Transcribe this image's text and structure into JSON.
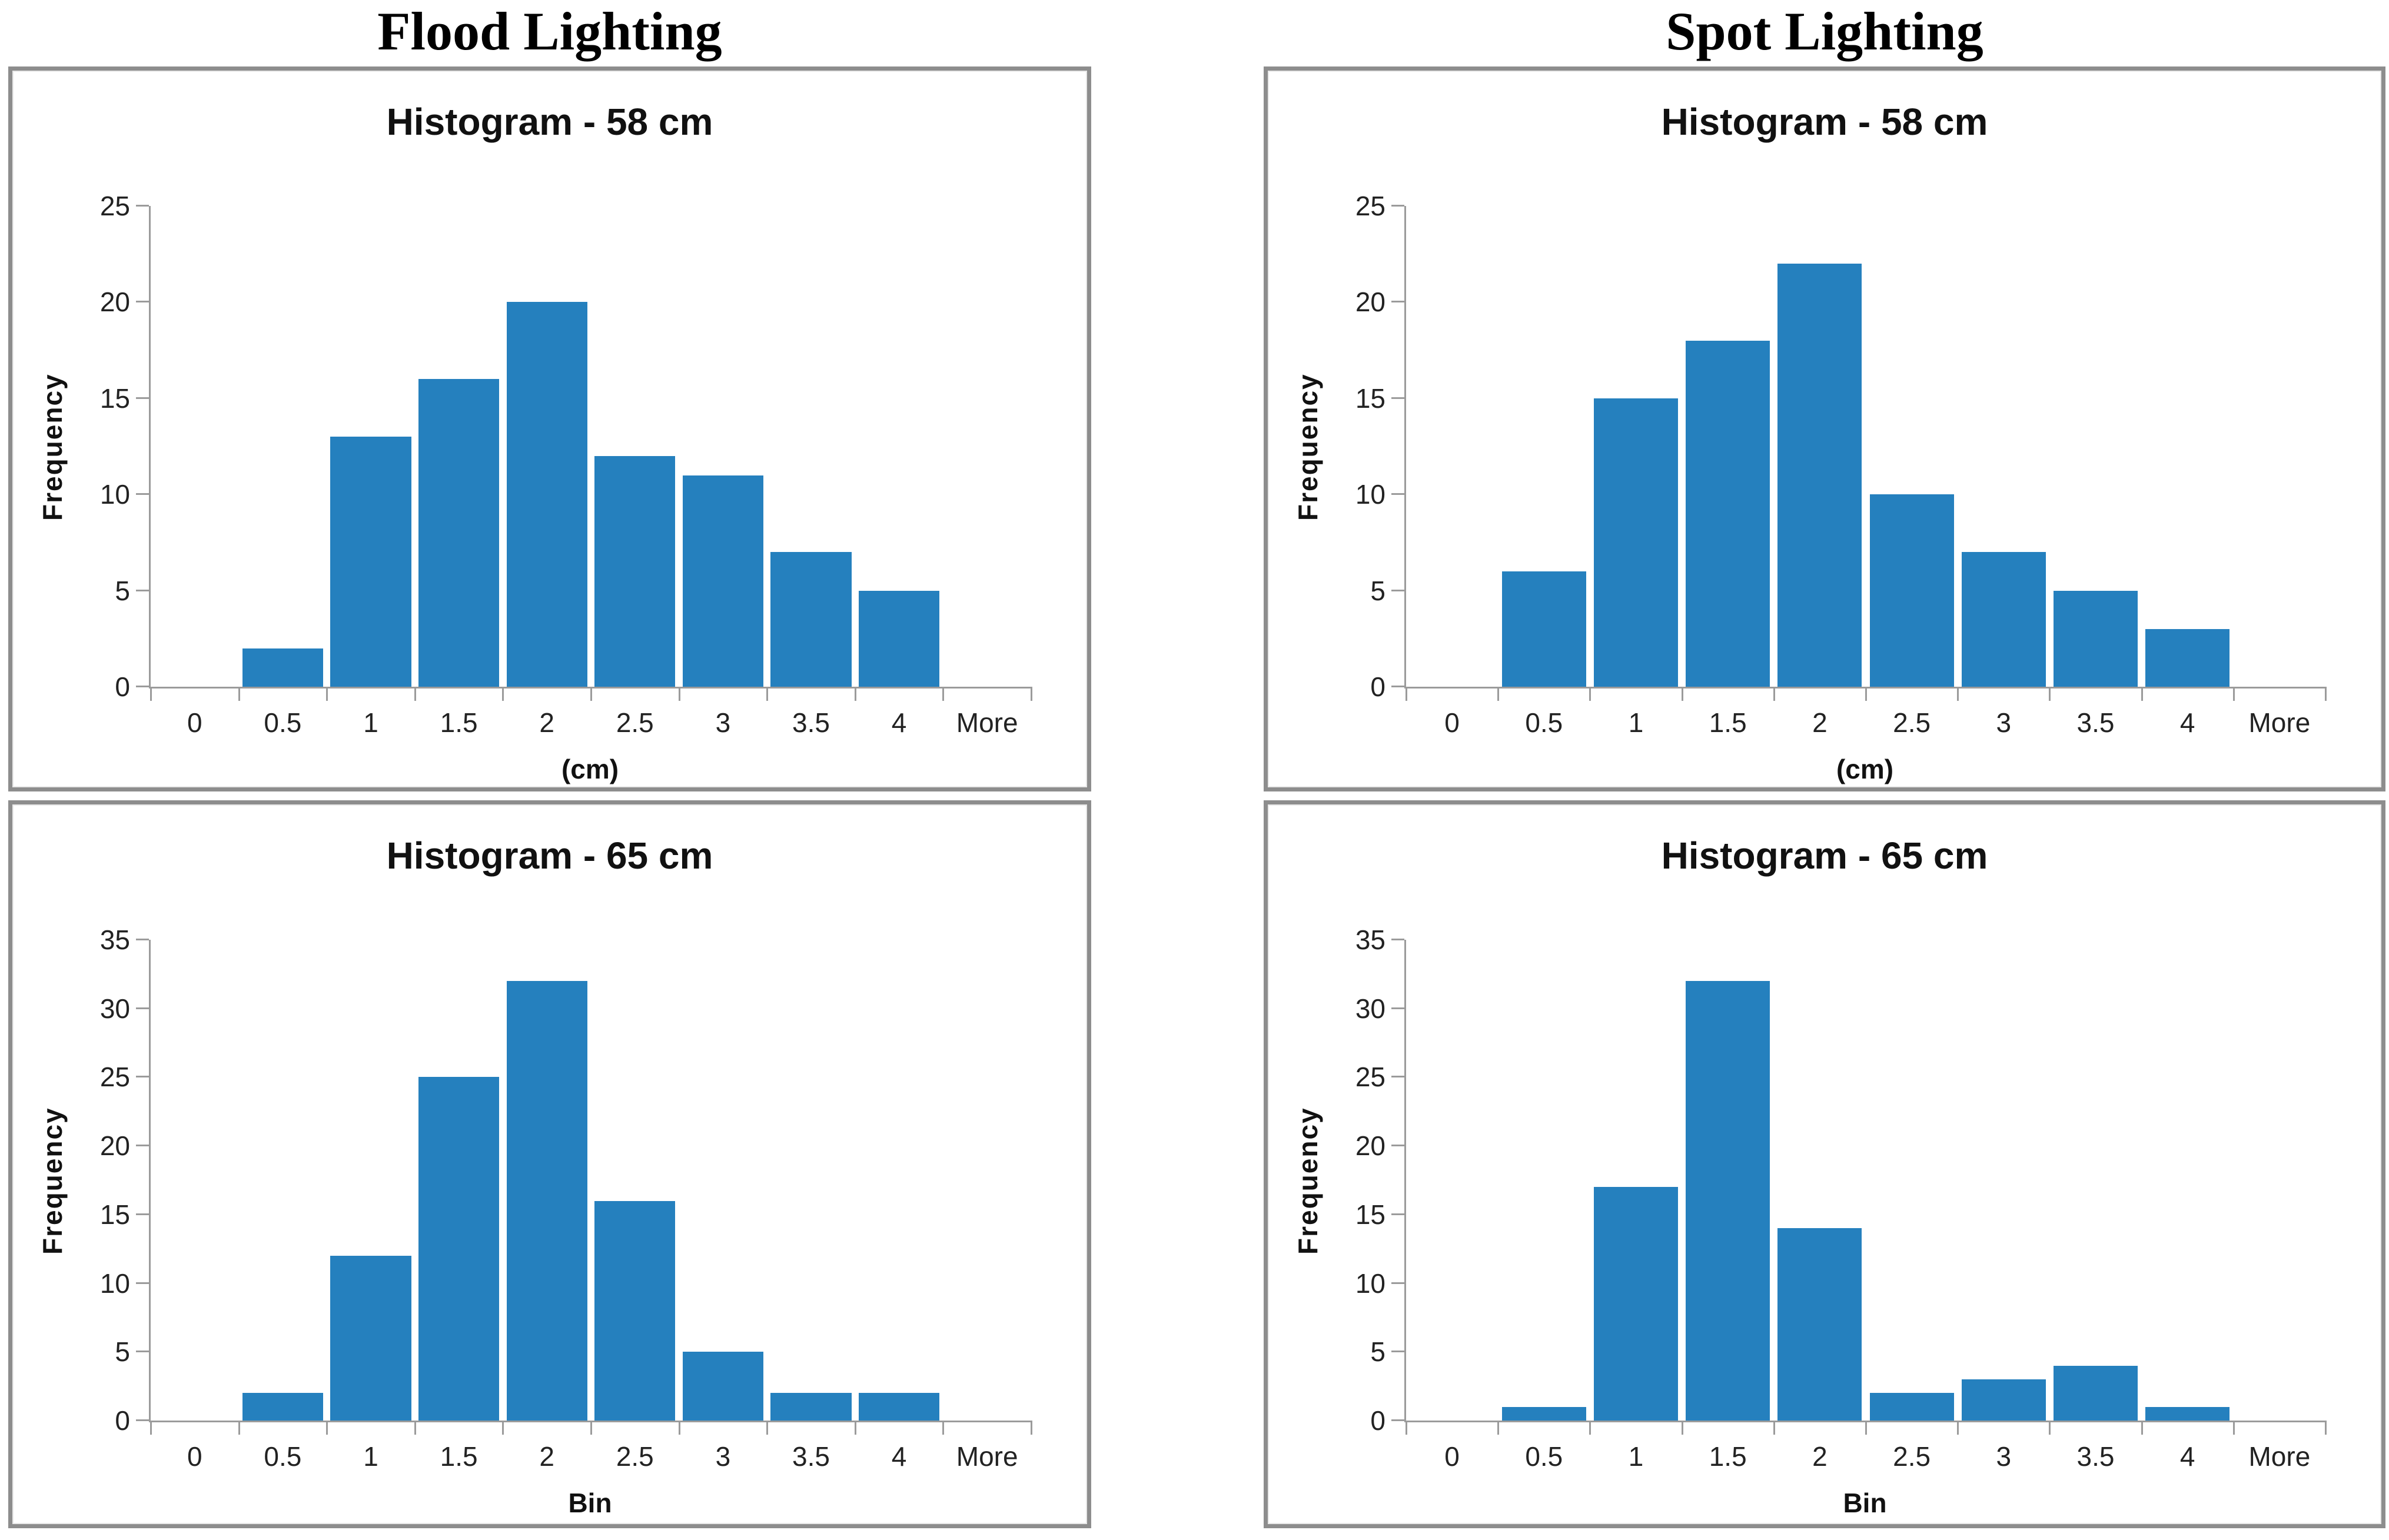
{
  "headings": [
    {
      "label": "Flood Lighting"
    },
    {
      "label": "Spot Lighting"
    }
  ],
  "colors": {
    "bar": "#2580BE",
    "axis": "#9B9B9B",
    "panel_border": "#8D8D8D",
    "text": "#1A1A1A"
  },
  "chart_data": [
    {
      "type": "bar",
      "group": "Flood Lighting",
      "title": "Histogram - 58 cm",
      "xlabel": "(cm)",
      "ylabel": "Frequency",
      "categories": [
        "0",
        "0.5",
        "1",
        "1.5",
        "2",
        "2.5",
        "3",
        "3.5",
        "4",
        "More"
      ],
      "values": [
        0,
        2,
        13,
        16,
        20,
        12,
        11,
        7,
        5,
        0
      ],
      "ylim": [
        0,
        25
      ],
      "yticks": [
        0,
        5,
        10,
        15,
        20,
        25
      ],
      "grid": false,
      "legend": "none"
    },
    {
      "type": "bar",
      "group": "Spot Lighting",
      "title": "Histogram - 58 cm",
      "xlabel": "(cm)",
      "ylabel": "Frequency",
      "categories": [
        "0",
        "0.5",
        "1",
        "1.5",
        "2",
        "2.5",
        "3",
        "3.5",
        "4",
        "More"
      ],
      "values": [
        0,
        6,
        15,
        18,
        22,
        10,
        7,
        5,
        3,
        0
      ],
      "ylim": [
        0,
        25
      ],
      "yticks": [
        0,
        5,
        10,
        15,
        20,
        25
      ],
      "grid": false,
      "legend": "none"
    },
    {
      "type": "bar",
      "group": "Flood Lighting",
      "title": "Histogram - 65 cm",
      "xlabel": "Bin",
      "ylabel": "Frequency",
      "categories": [
        "0",
        "0.5",
        "1",
        "1.5",
        "2",
        "2.5",
        "3",
        "3.5",
        "4",
        "More"
      ],
      "values": [
        0,
        2,
        12,
        25,
        32,
        16,
        5,
        2,
        2,
        0
      ],
      "ylim": [
        0,
        35
      ],
      "yticks": [
        0,
        5,
        10,
        15,
        20,
        25,
        30,
        35
      ],
      "grid": false,
      "legend": "none"
    },
    {
      "type": "bar",
      "group": "Spot Lighting",
      "title": "Histogram - 65 cm",
      "xlabel": "Bin",
      "ylabel": "Frequency",
      "categories": [
        "0",
        "0.5",
        "1",
        "1.5",
        "2",
        "2.5",
        "3",
        "3.5",
        "4",
        "More"
      ],
      "values": [
        0,
        1,
        17,
        32,
        14,
        2,
        3,
        4,
        1,
        0
      ],
      "ylim": [
        0,
        35
      ],
      "yticks": [
        0,
        5,
        10,
        15,
        20,
        25,
        30,
        35
      ],
      "grid": false,
      "legend": "none"
    }
  ]
}
